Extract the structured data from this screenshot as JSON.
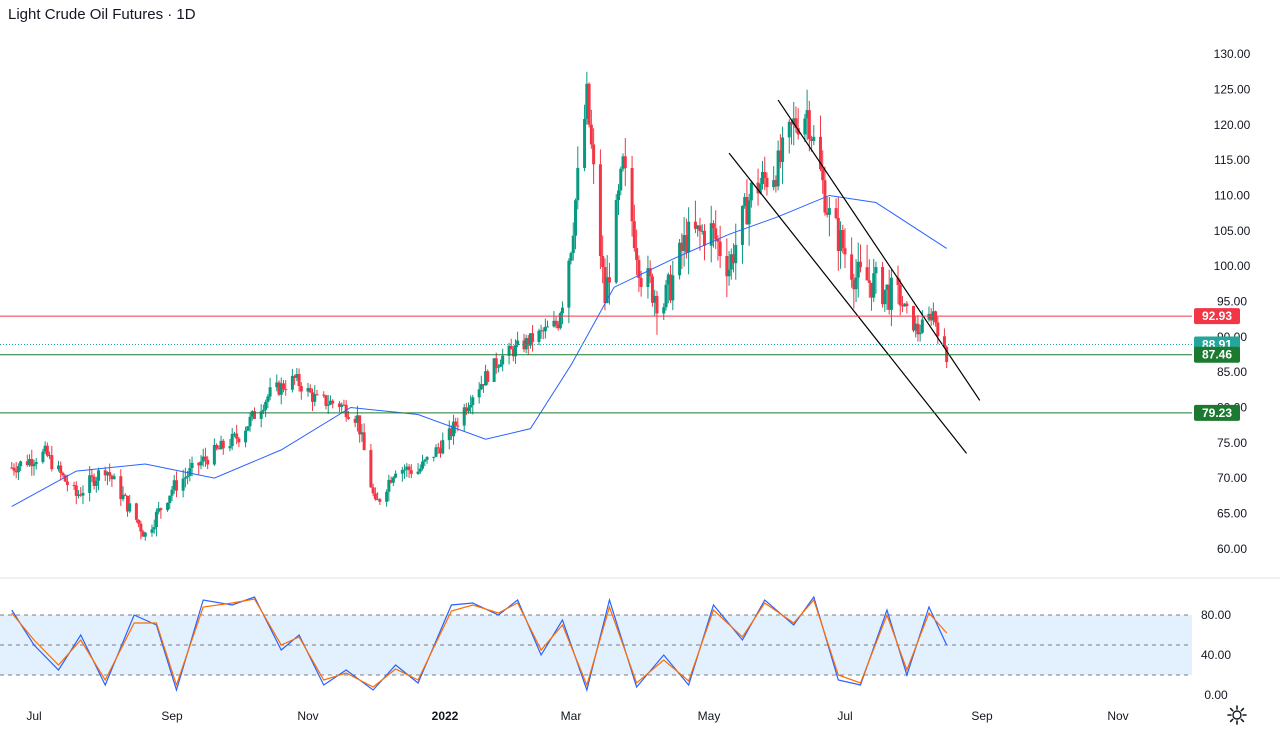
{
  "header": {
    "title": "Light Crude Oil Futures · 1D"
  },
  "colors": {
    "up": "#089981",
    "down": "#f23645",
    "ma": "#2962ff",
    "stoch_k": "#2962ff",
    "stoch_d": "#ff6d00",
    "resistance": "#f23645",
    "support": "#1b7a30",
    "last_price": "#26a69a",
    "channel": "#000000",
    "stoch_band": "#e3f0fd"
  },
  "chart_data": [
    {
      "type": "candlestick",
      "title": "Light Crude Oil Futures · 1D",
      "x_ticks": [
        "Jul",
        "Sep",
        "Nov",
        "2022",
        "Mar",
        "May",
        "Jul",
        "Sep",
        "Nov"
      ],
      "y_ticks": [
        "60.00",
        "65.00",
        "70.00",
        "75.00",
        "80.00",
        "85.00",
        "90.00",
        "95.00",
        "100.00",
        "105.00",
        "110.00",
        "115.00",
        "120.00",
        "125.00",
        "130.00"
      ],
      "ylim": [
        57,
        132
      ],
      "series": [
        {
          "name": "",
          "kind": "close",
          "dates": [
            "2021-06-21",
            "2021-07-06",
            "2021-07-20",
            "2021-08-02",
            "2021-08-20",
            "2021-09-01",
            "2021-09-15",
            "2021-10-01",
            "2021-10-15",
            "2021-10-26",
            "2021-11-05",
            "2021-11-15",
            "2021-11-23",
            "2021-12-01",
            "2021-12-10",
            "2021-12-20",
            "2022-01-03",
            "2022-01-14",
            "2022-01-27",
            "2022-02-10",
            "2022-02-23",
            "2022-03-01",
            "2022-03-08",
            "2022-03-16",
            "2022-03-24",
            "2022-04-01",
            "2022-04-11",
            "2022-04-21",
            "2022-05-02",
            "2022-05-10",
            "2022-05-20",
            "2022-06-01",
            "2022-06-08",
            "2022-06-14",
            "2022-06-24",
            "2022-07-06",
            "2022-07-15",
            "2022-07-26",
            "2022-08-03",
            "2022-08-10",
            "2022-08-16"
          ],
          "values": [
            71.5,
            73.5,
            67.5,
            71.5,
            62.0,
            68.5,
            72.5,
            76.0,
            82.0,
            84.0,
            81.0,
            80.5,
            78.5,
            66.0,
            71.5,
            71.0,
            76.0,
            82.0,
            87.0,
            89.5,
            92.0,
            103.5,
            123.7,
            95.0,
            114.0,
            99.0,
            94.5,
            104.0,
            105.0,
            100.0,
            110.5,
            114.0,
            120.0,
            122.0,
            107.0,
            98.5,
            97.5,
            95.0,
            90.7,
            93.5,
            86.5
          ]
        },
        {
          "name": "",
          "kind": "moving_average",
          "dates": [
            "2021-06-21",
            "2021-07-20",
            "2021-08-20",
            "2021-09-20",
            "2021-10-20",
            "2021-11-20",
            "2021-12-20",
            "2022-01-20",
            "2022-02-10",
            "2022-03-01",
            "2022-03-20",
            "2022-04-15",
            "2022-05-10",
            "2022-06-01",
            "2022-06-24",
            "2022-07-15",
            "2022-08-16"
          ],
          "values": [
            66.0,
            71.0,
            72.0,
            70.0,
            74.0,
            80.0,
            79.0,
            75.5,
            77.0,
            86.0,
            97.0,
            101.0,
            104.5,
            107.0,
            110.0,
            109.0,
            102.5
          ]
        }
      ],
      "horizontal_lines": [
        {
          "label": "92.93",
          "value": 92.93,
          "role": "resistance"
        },
        {
          "label": "88.91",
          "value": 88.91,
          "role": "last"
        },
        {
          "label": "87.46",
          "value": 87.46,
          "role": "support"
        },
        {
          "label": "79.23",
          "value": 79.23,
          "role": "support"
        }
      ],
      "channel": {
        "upper": [
          [
            "2022-06-01",
            123.5
          ],
          [
            "2022-08-31",
            81.0
          ]
        ],
        "lower": [
          [
            "2022-05-10",
            116.0
          ],
          [
            "2022-08-25",
            73.5
          ]
        ]
      }
    },
    {
      "type": "line",
      "indicator": "stochastic",
      "ylim": [
        -5,
        105
      ],
      "y_ticks": [
        "0.00",
        "40.00",
        "80.00"
      ],
      "band": [
        20,
        80
      ],
      "series": [
        {
          "name": "",
          "kind": "k",
          "dates": [
            "2021-06-21",
            "2021-07-01",
            "2021-07-12",
            "2021-07-22",
            "2021-08-02",
            "2021-08-15",
            "2021-08-25",
            "2021-09-03",
            "2021-09-15",
            "2021-09-28",
            "2021-10-08",
            "2021-10-20",
            "2021-10-28",
            "2021-11-08",
            "2021-11-18",
            "2021-11-30",
            "2021-12-10",
            "2021-12-20",
            "2022-01-04",
            "2022-01-14",
            "2022-01-26",
            "2022-02-04",
            "2022-02-15",
            "2022-02-25",
            "2022-03-08",
            "2022-03-18",
            "2022-03-30",
            "2022-04-11",
            "2022-04-22",
            "2022-05-03",
            "2022-05-16",
            "2022-05-26",
            "2022-06-08",
            "2022-06-17",
            "2022-06-28",
            "2022-07-08",
            "2022-07-20",
            "2022-07-29",
            "2022-08-08",
            "2022-08-16"
          ],
          "values": [
            85,
            50,
            25,
            60,
            10,
            80,
            70,
            5,
            95,
            90,
            98,
            45,
            60,
            10,
            25,
            5,
            30,
            12,
            90,
            92,
            80,
            95,
            40,
            75,
            5,
            95,
            8,
            40,
            10,
            90,
            55,
            95,
            70,
            98,
            15,
            10,
            85,
            20,
            88,
            50
          ]
        },
        {
          "name": "",
          "kind": "d",
          "dates": [
            "2021-06-21",
            "2021-07-01",
            "2021-07-12",
            "2021-07-22",
            "2021-08-02",
            "2021-08-15",
            "2021-08-25",
            "2021-09-03",
            "2021-09-15",
            "2021-09-28",
            "2021-10-08",
            "2021-10-20",
            "2021-10-28",
            "2021-11-08",
            "2021-11-18",
            "2021-11-30",
            "2021-12-10",
            "2021-12-20",
            "2022-01-04",
            "2022-01-14",
            "2022-01-26",
            "2022-02-04",
            "2022-02-15",
            "2022-02-25",
            "2022-03-08",
            "2022-03-18",
            "2022-03-30",
            "2022-04-11",
            "2022-04-22",
            "2022-05-03",
            "2022-05-16",
            "2022-05-26",
            "2022-06-08",
            "2022-06-17",
            "2022-06-28",
            "2022-07-08",
            "2022-07-20",
            "2022-07-29",
            "2022-08-08",
            "2022-08-16"
          ],
          "values": [
            82,
            55,
            30,
            55,
            15,
            72,
            72,
            10,
            88,
            92,
            96,
            50,
            58,
            15,
            22,
            8,
            26,
            15,
            84,
            90,
            82,
            92,
            45,
            70,
            10,
            88,
            12,
            35,
            14,
            85,
            58,
            92,
            72,
            95,
            20,
            12,
            80,
            25,
            82,
            62
          ]
        }
      ]
    }
  ]
}
